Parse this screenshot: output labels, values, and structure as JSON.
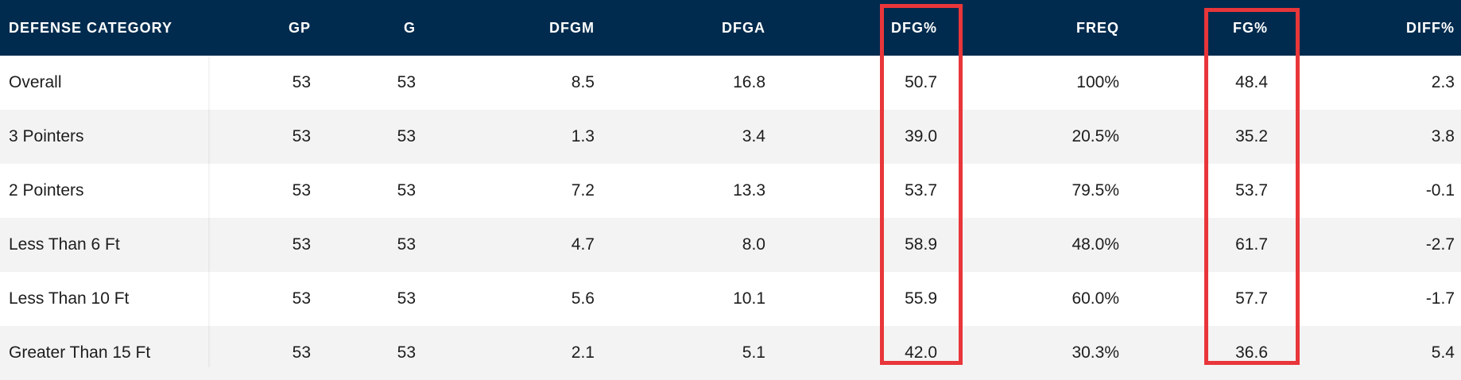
{
  "table": {
    "headers": {
      "category": "DEFENSE CATEGORY",
      "gp": "GP",
      "g": "G",
      "dfgm": "DFGM",
      "dfga": "DFGA",
      "dfg_pct": "DFG%",
      "freq": "FREQ",
      "fg_pct": "FG%",
      "diff_pct": "DIFF%"
    },
    "rows": [
      {
        "category": "Overall",
        "gp": "53",
        "g": "53",
        "dfgm": "8.5",
        "dfga": "16.8",
        "dfg_pct": "50.7",
        "freq": "100%",
        "fg_pct": "48.4",
        "diff_pct": "2.3"
      },
      {
        "category": "3 Pointers",
        "gp": "53",
        "g": "53",
        "dfgm": "1.3",
        "dfga": "3.4",
        "dfg_pct": "39.0",
        "freq": "20.5%",
        "fg_pct": "35.2",
        "diff_pct": "3.8"
      },
      {
        "category": "2 Pointers",
        "gp": "53",
        "g": "53",
        "dfgm": "7.2",
        "dfga": "13.3",
        "dfg_pct": "53.7",
        "freq": "79.5%",
        "fg_pct": "53.7",
        "diff_pct": "-0.1"
      },
      {
        "category": "Less Than 6 Ft",
        "gp": "53",
        "g": "53",
        "dfgm": "4.7",
        "dfga": "8.0",
        "dfg_pct": "58.9",
        "freq": "48.0%",
        "fg_pct": "61.7",
        "diff_pct": "-2.7"
      },
      {
        "category": "Less Than 10 Ft",
        "gp": "53",
        "g": "53",
        "dfgm": "5.6",
        "dfga": "10.1",
        "dfg_pct": "55.9",
        "freq": "60.0%",
        "fg_pct": "57.7",
        "diff_pct": "-1.7"
      },
      {
        "category": "Greater Than 15 Ft",
        "gp": "53",
        "g": "53",
        "dfgm": "2.1",
        "dfga": "5.1",
        "dfg_pct": "42.0",
        "freq": "30.3%",
        "fg_pct": "36.6",
        "diff_pct": "5.4"
      }
    ]
  },
  "colors": {
    "header_bg": "#012b4e",
    "highlight_border": "#e8363a",
    "row_alt_bg": "#f3f3f3"
  },
  "annotations": [
    "highlight-dfg-column",
    "highlight-fg-column"
  ]
}
